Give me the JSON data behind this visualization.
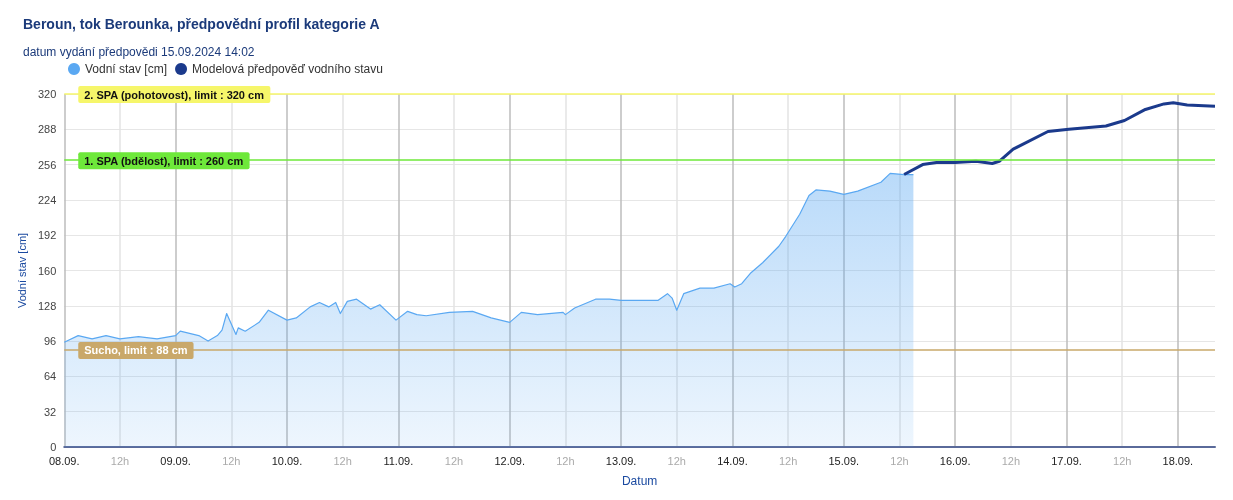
{
  "chart_data": {
    "type": "area",
    "title": "Beroun, tok Berounka, předpovědní profil kategorie A",
    "subtitle": "datum vydání předpovědi 15.09.2024 14:02",
    "xlabel": "Datum",
    "ylabel": "Vodní stav [cm]",
    "xlim": [
      "2024-09-08T00:00",
      "2024-09-18T08:00"
    ],
    "xticks": [
      {
        "value": "2024-09-08T00:00",
        "label": "08.09."
      },
      {
        "value": "2024-09-08T12:00",
        "label": "12h"
      },
      {
        "value": "2024-09-09T00:00",
        "label": "09.09."
      },
      {
        "value": "2024-09-09T12:00",
        "label": "12h"
      },
      {
        "value": "2024-09-10T00:00",
        "label": "10.09."
      },
      {
        "value": "2024-09-10T12:00",
        "label": "12h"
      },
      {
        "value": "2024-09-11T00:00",
        "label": "11.09."
      },
      {
        "value": "2024-09-11T12:00",
        "label": "12h"
      },
      {
        "value": "2024-09-12T00:00",
        "label": "12.09."
      },
      {
        "value": "2024-09-12T12:00",
        "label": "12h"
      },
      {
        "value": "2024-09-13T00:00",
        "label": "13.09."
      },
      {
        "value": "2024-09-13T12:00",
        "label": "12h"
      },
      {
        "value": "2024-09-14T00:00",
        "label": "14.09."
      },
      {
        "value": "2024-09-14T12:00",
        "label": "12h"
      },
      {
        "value": "2024-09-15T00:00",
        "label": "15.09."
      },
      {
        "value": "2024-09-15T12:00",
        "label": "12h"
      },
      {
        "value": "2024-09-16T00:00",
        "label": "16.09."
      },
      {
        "value": "2024-09-16T12:00",
        "label": "12h"
      },
      {
        "value": "2024-09-17T00:00",
        "label": "17.09."
      },
      {
        "value": "2024-09-17T12:00",
        "label": "12h"
      },
      {
        "value": "2024-09-18T00:00",
        "label": "18.09."
      }
    ],
    "ylim": [
      0,
      320
    ],
    "yticks": [
      0,
      32,
      64,
      96,
      128,
      160,
      192,
      224,
      256,
      288,
      320
    ],
    "grid": true,
    "legend": "top",
    "marker": "none",
    "ref_lines": [
      {
        "axis": "y",
        "value": 320,
        "label": "2. SPA (pohotovost), limit : 320 cm",
        "color": "#f6f66a"
      },
      {
        "axis": "y",
        "value": 260,
        "label": "1. SPA (bdělost), limit : 260 cm",
        "color": "#6ee83a"
      },
      {
        "axis": "y",
        "value": 88,
        "label": "Sucho, limit : 88 cm",
        "color": "#c9a86a"
      }
    ],
    "series": [
      {
        "name": "Vodní stav [cm]",
        "color": "#5aa8f2",
        "x": [
          "2024-09-08T00:00",
          "2024-09-08T03:00",
          "2024-09-08T06:00",
          "2024-09-08T09:00",
          "2024-09-08T12:00",
          "2024-09-08T16:00",
          "2024-09-08T20:00",
          "2024-09-09T00:00",
          "2024-09-09T01:00",
          "2024-09-09T05:00",
          "2024-09-09T07:00",
          "2024-09-09T09:00",
          "2024-09-09T10:00",
          "2024-09-09T11:00",
          "2024-09-09T13:00",
          "2024-09-09T13:30",
          "2024-09-09T15:00",
          "2024-09-09T18:00",
          "2024-09-09T20:00",
          "2024-09-10T00:00",
          "2024-09-10T02:00",
          "2024-09-10T05:00",
          "2024-09-10T07:00",
          "2024-09-10T09:00",
          "2024-09-10T10:30",
          "2024-09-10T11:30",
          "2024-09-10T13:00",
          "2024-09-10T15:00",
          "2024-09-10T18:00",
          "2024-09-10T20:00",
          "2024-09-10T23:30",
          "2024-09-11T02:00",
          "2024-09-11T04:00",
          "2024-09-11T06:00",
          "2024-09-11T11:00",
          "2024-09-11T16:00",
          "2024-09-11T20:00",
          "2024-09-12T00:00",
          "2024-09-12T02:30",
          "2024-09-12T06:00",
          "2024-09-12T11:30",
          "2024-09-12T12:00",
          "2024-09-12T14:00",
          "2024-09-12T18:30",
          "2024-09-12T21:30",
          "2024-09-13T00:00",
          "2024-09-13T08:00",
          "2024-09-13T10:00",
          "2024-09-13T11:00",
          "2024-09-13T12:00",
          "2024-09-13T13:30",
          "2024-09-13T17:00",
          "2024-09-13T20:00",
          "2024-09-13T23:30",
          "2024-09-14T00:30",
          "2024-09-14T02:00",
          "2024-09-14T04:00",
          "2024-09-14T06:30",
          "2024-09-14T10:00",
          "2024-09-14T11:30",
          "2024-09-14T14:30",
          "2024-09-14T16:30",
          "2024-09-14T18:00",
          "2024-09-14T21:00",
          "2024-09-15T00:00",
          "2024-09-15T03:00",
          "2024-09-15T08:00",
          "2024-09-15T10:00",
          "2024-09-15T13:00",
          "2024-09-15T15:00"
        ],
        "values": [
          95,
          101,
          98,
          101,
          98,
          100,
          98,
          101,
          105,
          101,
          96,
          101,
          106,
          121,
          102,
          108,
          105,
          113,
          124,
          115,
          117,
          127,
          131,
          127,
          131,
          121,
          132,
          134,
          125,
          129,
          115,
          123,
          120,
          119,
          122,
          123,
          117,
          113,
          122,
          120,
          122,
          120,
          126,
          134,
          134,
          133,
          133,
          139,
          135,
          124,
          139,
          144,
          144,
          148,
          145,
          148,
          158,
          167,
          182,
          191,
          211,
          228,
          233,
          232,
          229,
          232,
          240,
          248,
          247,
          247
        ]
      },
      {
        "name": "Modelová předpověď vodního stavu",
        "type": "line",
        "color": "#1b3a8c",
        "x": [
          "2024-09-15T13:00",
          "2024-09-15T17:00",
          "2024-09-15T20:00",
          "2024-09-16T00:00",
          "2024-09-16T04:30",
          "2024-09-16T08:00",
          "2024-09-16T09:30",
          "2024-09-16T12:30",
          "2024-09-16T20:00",
          "2024-09-17T00:30",
          "2024-09-17T08:30",
          "2024-09-17T12:30",
          "2024-09-17T17:00",
          "2024-09-17T21:00",
          "2024-09-17T23:00",
          "2024-09-18T02:00",
          "2024-09-18T08:00"
        ],
        "values": [
          247,
          256,
          258,
          258,
          259,
          257,
          259,
          270,
          286,
          288,
          291,
          296,
          306,
          311,
          312,
          310,
          309
        ]
      }
    ]
  }
}
